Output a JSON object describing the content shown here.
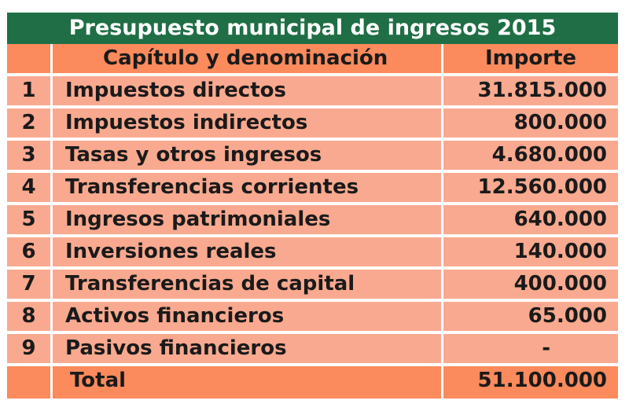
{
  "table": {
    "title": "Presupuesto municipal de ingresos 2015",
    "header": {
      "num": "",
      "chapter": "Capítulo y denominación",
      "amount": "Importe"
    },
    "rows": [
      {
        "num": "1",
        "chapter": "Impuestos directos",
        "amount": "31.815.000"
      },
      {
        "num": "2",
        "chapter": "Impuestos indirectos",
        "amount": "800.000"
      },
      {
        "num": "3",
        "chapter": "Tasas y otros ingresos",
        "amount": "4.680.000"
      },
      {
        "num": "4",
        "chapter": "Transferencias corrientes",
        "amount": "12.560.000"
      },
      {
        "num": "5",
        "chapter": "Ingresos patrimoniales",
        "amount": "640.000"
      },
      {
        "num": "6",
        "chapter": "Inversiones reales",
        "amount": "140.000"
      },
      {
        "num": "7",
        "chapter": "Transferencias de capital",
        "amount": "400.000"
      },
      {
        "num": "8",
        "chapter": "Activos financieros",
        "amount": "65.000"
      },
      {
        "num": "9",
        "chapter": "Pasivos financieros",
        "amount": "-"
      }
    ],
    "total": {
      "num": "",
      "chapter": "Total",
      "amount": "51.100.000"
    }
  }
}
